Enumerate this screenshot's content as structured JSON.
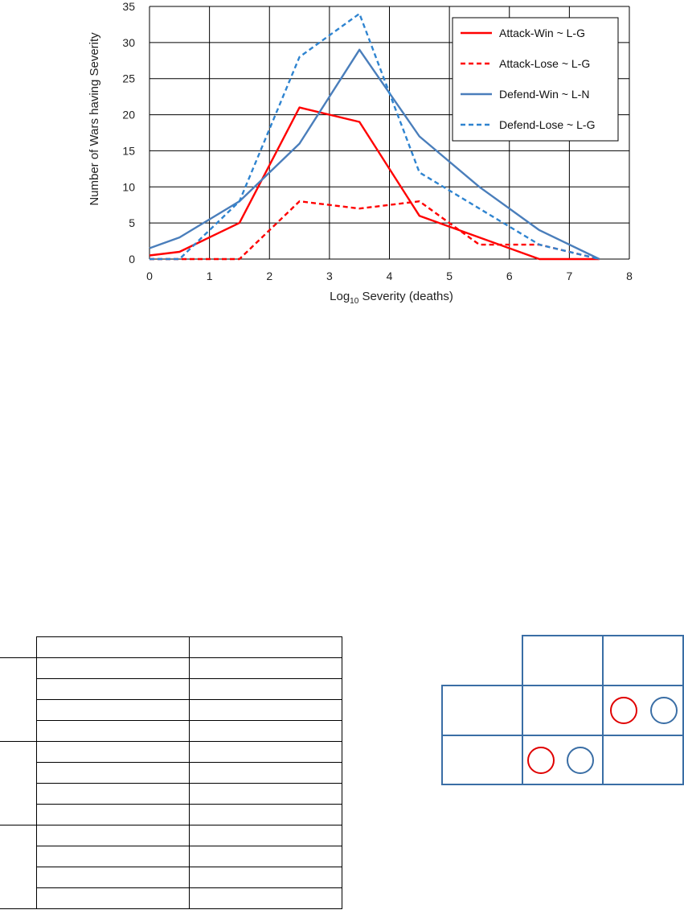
{
  "chart_data": {
    "type": "line",
    "xlabel_base": "Log",
    "xlabel_sub": "10",
    "xlabel_rest": " Severity (deaths)",
    "ylabel": "Number of Wars having Severity",
    "xlim": [
      0,
      8
    ],
    "ylim": [
      0,
      35
    ],
    "xticks": [
      0,
      1,
      2,
      3,
      4,
      5,
      6,
      7,
      8
    ],
    "yticks": [
      0,
      5,
      10,
      15,
      20,
      25,
      30,
      35
    ],
    "grid": true,
    "legend_position": "top-right",
    "x": [
      0,
      0.5,
      1.5,
      2.5,
      3.5,
      4.5,
      5.5,
      6.5,
      7.5
    ],
    "series": [
      {
        "name": "Attack-Win ~ L-G",
        "color": "#ff0000",
        "dash": false,
        "values": [
          0.5,
          1,
          5,
          21,
          19,
          6,
          3,
          0,
          0
        ]
      },
      {
        "name": "Attack-Lose ~ L-G",
        "color": "#ff0000",
        "dash": true,
        "values": [
          0,
          0,
          0,
          8,
          7,
          8,
          2,
          2,
          0
        ]
      },
      {
        "name": "Defend-Win ~ L-N",
        "color": "#4a7ebb",
        "dash": false,
        "values": [
          1.5,
          3,
          8,
          16,
          29,
          17,
          10,
          4,
          0
        ]
      },
      {
        "name": "Defend-Lose ~ L-G",
        "color": "#2f84d0",
        "dash": true,
        "values": [
          0,
          0,
          8,
          28,
          34,
          12,
          7,
          2,
          0
        ]
      }
    ]
  },
  "colors": {
    "red_circle": "#e00000",
    "blue_circle": "#3a6ea5"
  }
}
